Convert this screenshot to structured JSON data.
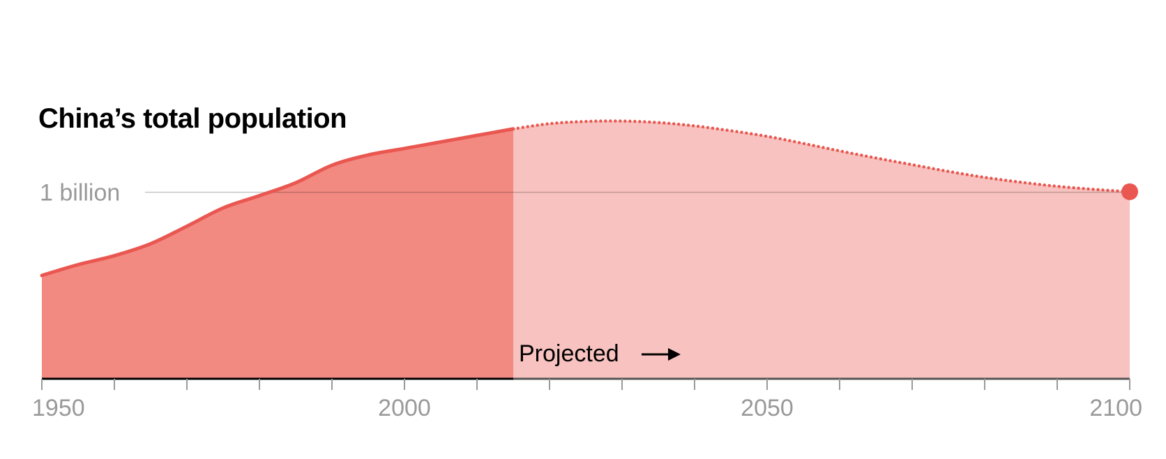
{
  "chart_data": {
    "type": "area",
    "title": "China’s total population",
    "xlabel": "",
    "ylabel": "",
    "xlim": [
      1950,
      2100
    ],
    "ylim": [
      0,
      1.5
    ],
    "x_ticks": [
      1950,
      2000,
      2050,
      2100
    ],
    "reference_line": {
      "value": 1.0,
      "label": "1 billion"
    },
    "projection_start": 2015,
    "projection_label": "Projected",
    "grid": false,
    "legend": "none",
    "series": [
      {
        "x": [
          1950,
          1955,
          1960,
          1965,
          1970,
          1975,
          1980,
          1985,
          1990,
          1995,
          2000,
          2005,
          2010,
          2015,
          2020,
          2025,
          2030,
          2035,
          2040,
          2045,
          2050,
          2055,
          2060,
          2065,
          2070,
          2075,
          2080,
          2085,
          2090,
          2095,
          2100
        ],
        "values": [
          0.554,
          0.612,
          0.66,
          0.724,
          0.818,
          0.916,
          0.982,
          1.051,
          1.145,
          1.2,
          1.235,
          1.27,
          1.305,
          1.34,
          1.368,
          1.38,
          1.382,
          1.374,
          1.356,
          1.33,
          1.3,
          1.262,
          1.222,
          1.184,
          1.148,
          1.112,
          1.08,
          1.054,
          1.032,
          1.016,
          1.003
        ]
      }
    ],
    "colors": {
      "historical_fill": "#f28a82",
      "projected_fill": "#f7c2bf",
      "line": "#e95750",
      "axis": "#000000",
      "projected_axis": "#555555",
      "tick": "#999999",
      "reference": "#999999"
    },
    "icons": {
      "projection_arrow": "right-arrow-icon"
    }
  }
}
